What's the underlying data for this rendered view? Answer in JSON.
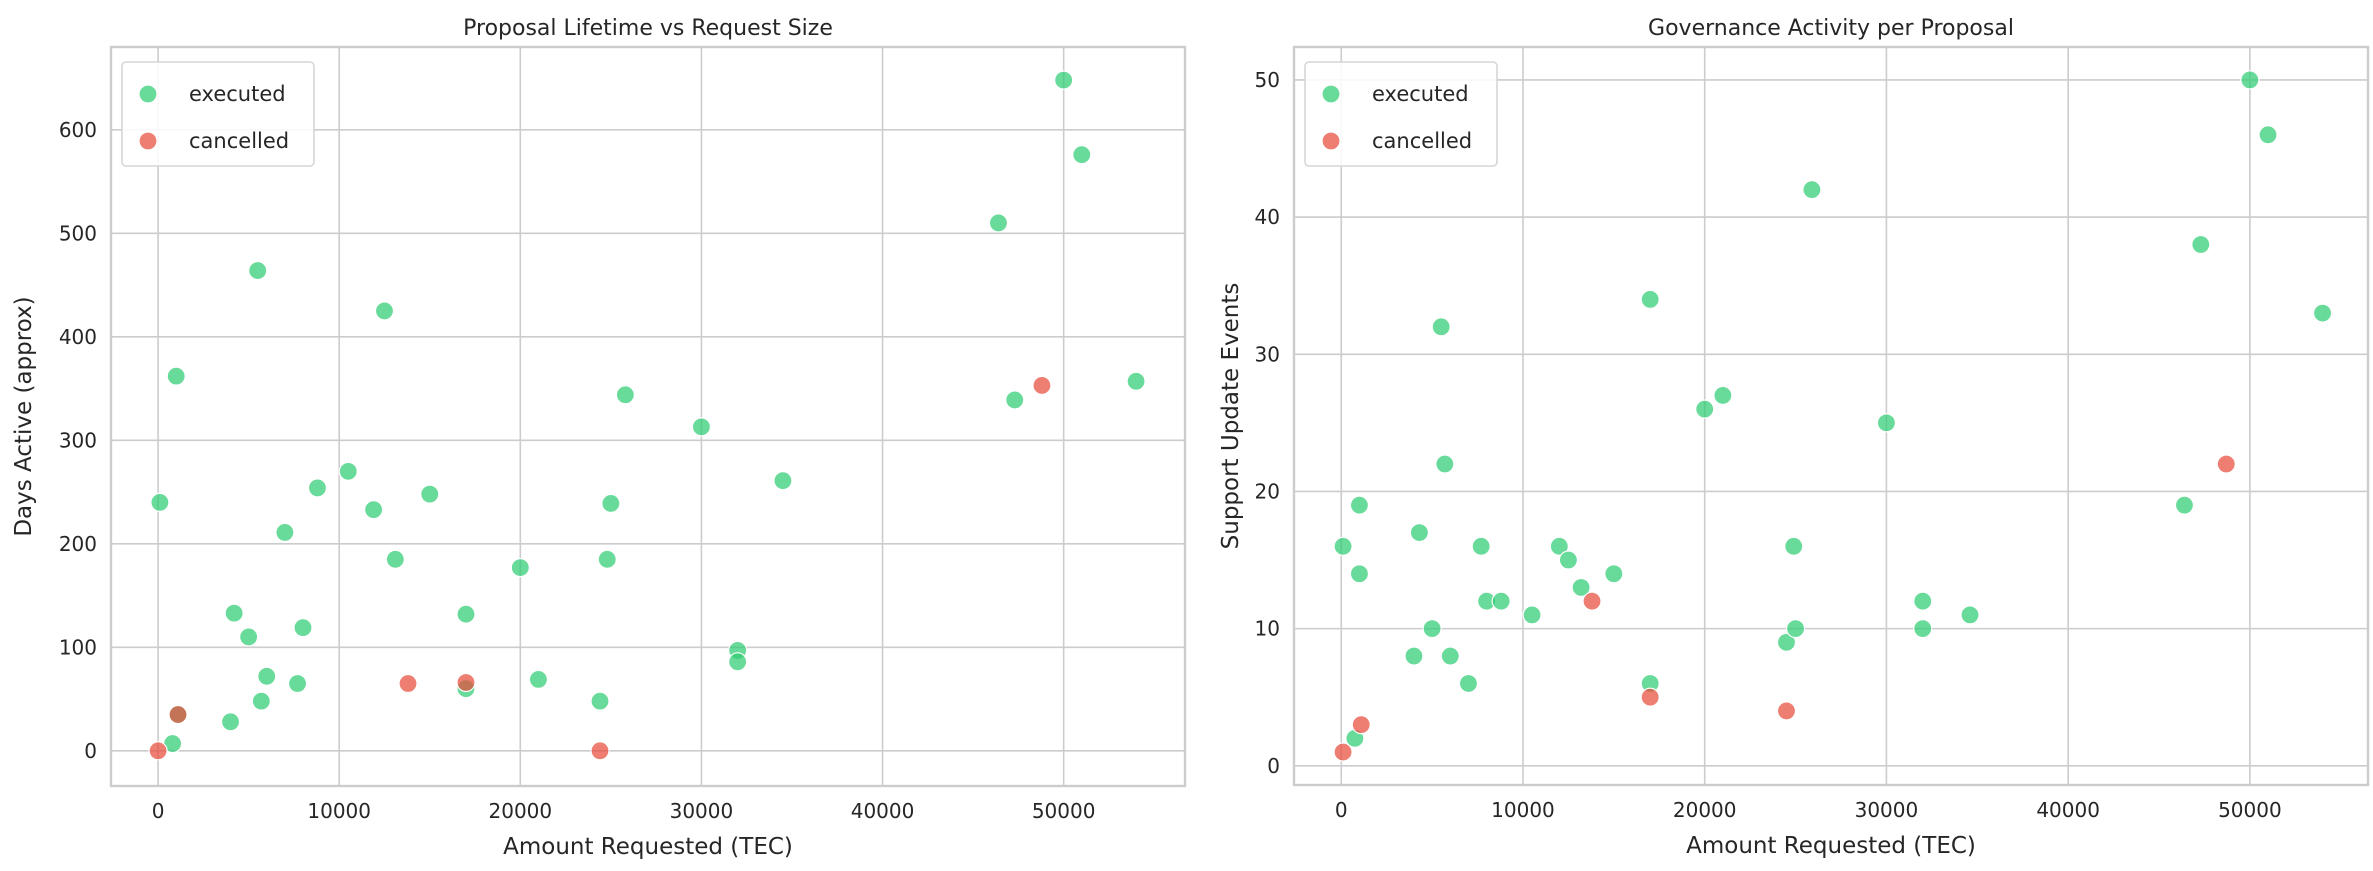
{
  "colors": {
    "executed": "#2ecc71",
    "cancelled": "#e74c3c",
    "grid": "#cccccc"
  },
  "chart_data": [
    {
      "type": "scatter",
      "title": "Proposal Lifetime vs Request Size",
      "xlabel": "Amount Requested (TEC)",
      "ylabel": "Days Active (approx)",
      "xlim": [
        -2600,
        56700
      ],
      "ylim": [
        -34,
        680
      ],
      "xticks": [
        0,
        10000,
        20000,
        30000,
        40000,
        50000
      ],
      "yticks": [
        0,
        100,
        200,
        300,
        400,
        500,
        600
      ],
      "grid": true,
      "legend": "top-left",
      "series": [
        {
          "name": "executed",
          "points": [
            [
              100,
              240
            ],
            [
              1000,
              362
            ],
            [
              800,
              7
            ],
            [
              1100,
              35
            ],
            [
              4000,
              28
            ],
            [
              4200,
              133
            ],
            [
              5000,
              110
            ],
            [
              5500,
              464
            ],
            [
              5700,
              48
            ],
            [
              6000,
              72
            ],
            [
              7000,
              211
            ],
            [
              7700,
              65
            ],
            [
              8000,
              119
            ],
            [
              8800,
              254
            ],
            [
              10500,
              270
            ],
            [
              11900,
              233
            ],
            [
              12500,
              425
            ],
            [
              13100,
              185
            ],
            [
              15000,
              248
            ],
            [
              17000,
              132
            ],
            [
              17000,
              60
            ],
            [
              20000,
              177
            ],
            [
              21000,
              69
            ],
            [
              24400,
              48
            ],
            [
              24800,
              185
            ],
            [
              25000,
              239
            ],
            [
              25800,
              344
            ],
            [
              30000,
              313
            ],
            [
              32000,
              97
            ],
            [
              32000,
              86
            ],
            [
              34500,
              261
            ],
            [
              46400,
              510
            ],
            [
              47300,
              339
            ],
            [
              50000,
              648
            ],
            [
              51000,
              576
            ],
            [
              54000,
              357
            ]
          ]
        },
        {
          "name": "cancelled",
          "points": [
            [
              0,
              0
            ],
            [
              1100,
              35
            ],
            [
              13800,
              65
            ],
            [
              17000,
              66
            ],
            [
              24400,
              0
            ],
            [
              48800,
              353
            ]
          ]
        }
      ]
    },
    {
      "type": "scatter",
      "title": "Governance Activity per Proposal",
      "xlabel": "Amount Requested (TEC)",
      "ylabel": "Support Update Events",
      "xlim": [
        -2600,
        56500
      ],
      "ylim": [
        -1.4,
        52.4
      ],
      "xticks": [
        0,
        10000,
        20000,
        30000,
        40000,
        50000
      ],
      "yticks": [
        0,
        10,
        20,
        30,
        40,
        50
      ],
      "grid": true,
      "legend": "top-left",
      "series": [
        {
          "name": "executed",
          "points": [
            [
              100,
              16
            ],
            [
              1000,
              19
            ],
            [
              1000,
              14
            ],
            [
              750,
              2
            ],
            [
              4300,
              17
            ],
            [
              4000,
              8
            ],
            [
              5000,
              10
            ],
            [
              5500,
              32
            ],
            [
              5700,
              22
            ],
            [
              6000,
              8
            ],
            [
              7000,
              6
            ],
            [
              7700,
              16
            ],
            [
              8000,
              12
            ],
            [
              8800,
              12
            ],
            [
              10500,
              11
            ],
            [
              12000,
              16
            ],
            [
              12500,
              15
            ],
            [
              13200,
              13
            ],
            [
              15000,
              14
            ],
            [
              17000,
              34
            ],
            [
              17000,
              6
            ],
            [
              20000,
              26
            ],
            [
              21000,
              27
            ],
            [
              24500,
              9
            ],
            [
              24900,
              16
            ],
            [
              25000,
              10
            ],
            [
              25900,
              42
            ],
            [
              30000,
              25
            ],
            [
              32000,
              12
            ],
            [
              32000,
              10
            ],
            [
              34600,
              11
            ],
            [
              46400,
              19
            ],
            [
              47300,
              38
            ],
            [
              50000,
              50
            ],
            [
              51000,
              46
            ],
            [
              54000,
              33
            ]
          ]
        },
        {
          "name": "cancelled",
          "points": [
            [
              100,
              1
            ],
            [
              1100,
              3
            ],
            [
              13800,
              12
            ],
            [
              17000,
              5
            ],
            [
              24500,
              4
            ],
            [
              48700,
              22
            ]
          ]
        }
      ]
    }
  ]
}
